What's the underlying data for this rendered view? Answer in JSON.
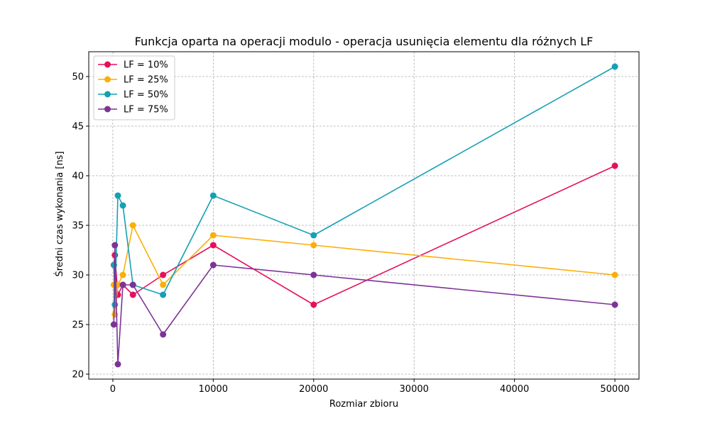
{
  "chart_data": {
    "type": "line",
    "title": "Funkcja oparta na operacji modulo - operacja usunięcia elementu dla różnych LF",
    "xlabel": "Rozmiar zbioru",
    "ylabel": "Średni czas wykonania [ns]",
    "xlim": [
      -2400,
      52400
    ],
    "ylim": [
      19.5,
      52.5
    ],
    "xticks": [
      0,
      10000,
      20000,
      30000,
      40000,
      50000
    ],
    "yticks": [
      20,
      25,
      30,
      35,
      40,
      45,
      50
    ],
    "grid": true,
    "legend_position": "top-left",
    "x": [
      100,
      200,
      500,
      1000,
      2000,
      5000,
      10000,
      20000,
      50000
    ],
    "series": [
      {
        "name": "LF = 10%",
        "color": "#e6105a",
        "values": [
          31,
          32,
          28,
          29,
          28,
          30,
          33,
          27,
          41
        ]
      },
      {
        "name": "LF = 25%",
        "color": "#fcaf0a",
        "values": [
          29,
          26,
          29,
          30,
          35,
          29,
          34,
          33,
          30
        ]
      },
      {
        "name": "LF = 50%",
        "color": "#16a0b4",
        "values": [
          31,
          27,
          38,
          37,
          29,
          28,
          38,
          34,
          51
        ]
      },
      {
        "name": "LF = 75%",
        "color": "#7d3396",
        "values": [
          25,
          33,
          21,
          29,
          29,
          24,
          31,
          30,
          27
        ]
      }
    ]
  }
}
